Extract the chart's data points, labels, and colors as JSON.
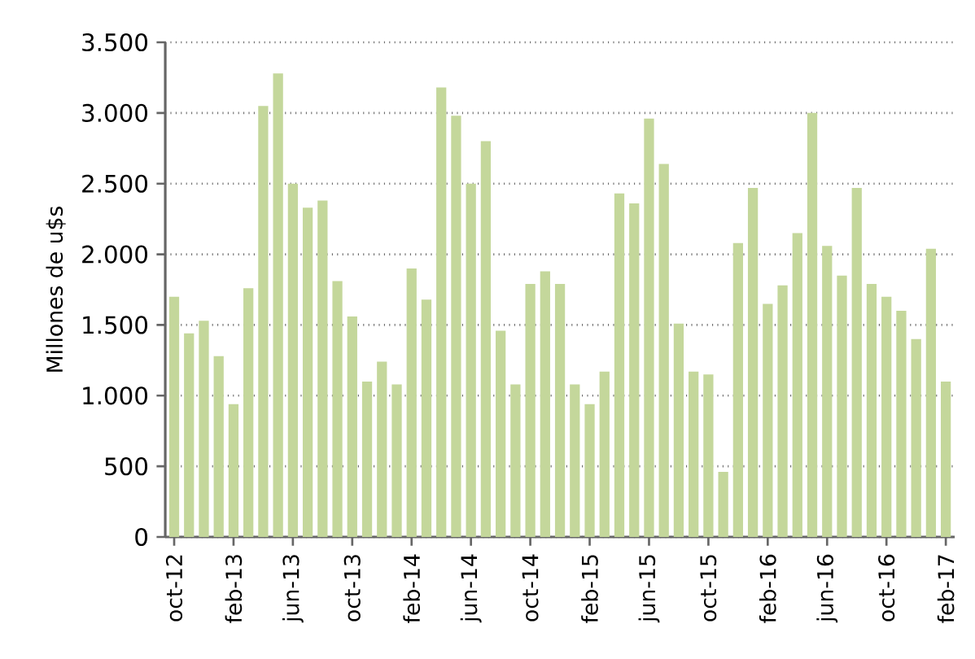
{
  "chart_data": {
    "type": "bar",
    "ylabel": "Millones de u$s",
    "categories": [
      "oct-12",
      null,
      null,
      null,
      "feb-13",
      null,
      null,
      null,
      "jun-13",
      null,
      null,
      null,
      "oct-13",
      null,
      null,
      null,
      "feb-14",
      null,
      null,
      null,
      "jun-14",
      null,
      null,
      null,
      "oct-14",
      null,
      null,
      null,
      "feb-15",
      null,
      null,
      null,
      "jun-15",
      null,
      null,
      null,
      "oct-15",
      null,
      null,
      null,
      "feb-16",
      null,
      null,
      null,
      "jun-16",
      null,
      null,
      null,
      "oct-16",
      null,
      null,
      null,
      "feb-17"
    ],
    "values": [
      1700,
      1440,
      1530,
      1280,
      940,
      1760,
      3050,
      3280,
      2500,
      2330,
      2380,
      1810,
      1560,
      1100,
      1240,
      1080,
      1900,
      1680,
      3180,
      2980,
      2500,
      2800,
      1460,
      1080,
      1790,
      1880,
      1790,
      1080,
      940,
      1170,
      2430,
      2360,
      2960,
      2640,
      1510,
      1170,
      1150,
      460,
      2080,
      2470,
      1650,
      1780,
      2150,
      3000,
      2060,
      1850,
      2470,
      1790,
      1700,
      1600,
      1400,
      2040,
      1100
    ],
    "color": "#c4d79b",
    "ylim": [
      0,
      3500
    ],
    "yticks": [
      0,
      500,
      {
        "value": 1000,
        "label": "1.000"
      },
      {
        "value": 1500,
        "label": "1.500"
      },
      {
        "value": 2000,
        "label": "2.000"
      },
      {
        "value": 2500,
        "label": "2.500"
      },
      {
        "value": 3000,
        "label": "3.000"
      },
      {
        "value": 3500,
        "label": "3.500"
      }
    ],
    "grid": "y"
  }
}
